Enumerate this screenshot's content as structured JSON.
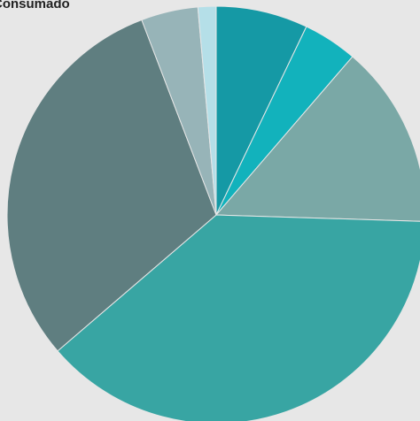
{
  "chart_data": {
    "type": "pie",
    "title": "Consumado",
    "start_angle_deg": 0,
    "direction": "clockwise",
    "values": [
      7.1,
      4.2,
      14.2,
      38.2,
      30.5,
      4.4,
      1.4
    ],
    "colors": [
      "#1599a5",
      "#12b2bc",
      "#7aa8a6",
      "#38a5a3",
      "#5f7e80",
      "#97b4b8",
      "#b5dfe8"
    ]
  }
}
